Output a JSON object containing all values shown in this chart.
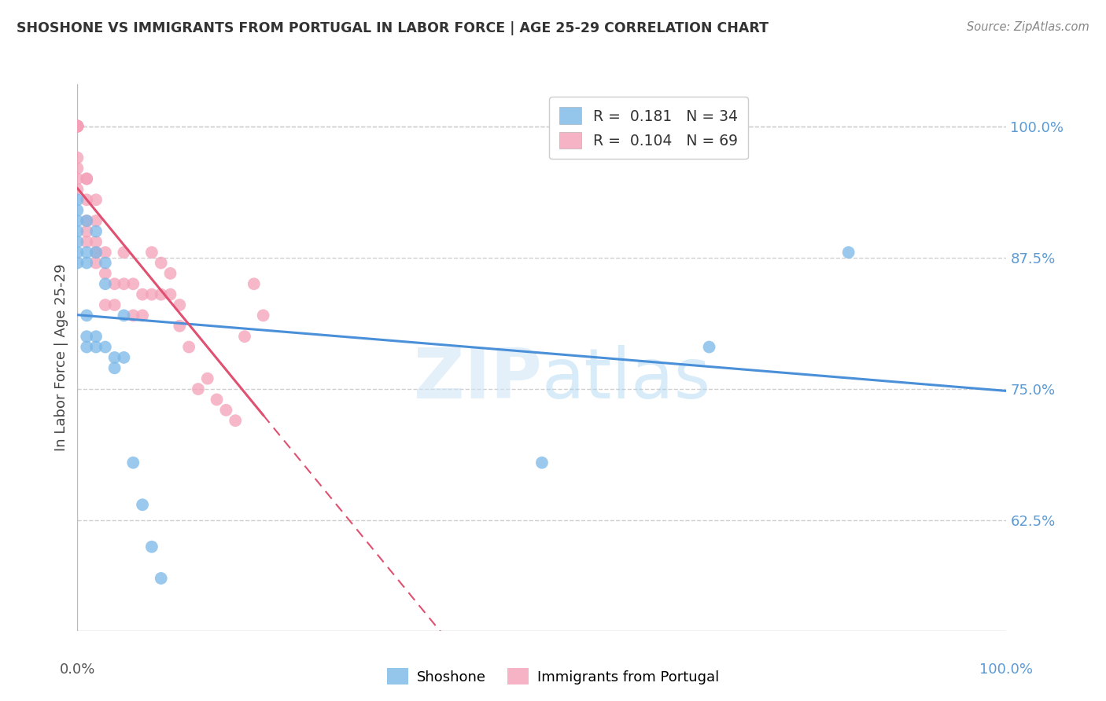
{
  "title": "SHOSHONE VS IMMIGRANTS FROM PORTUGAL IN LABOR FORCE | AGE 25-29 CORRELATION CHART",
  "source": "Source: ZipAtlas.com",
  "ylabel": "In Labor Force | Age 25-29",
  "yticks": [
    62.5,
    75.0,
    87.5,
    100.0
  ],
  "ytick_labels": [
    "62.5%",
    "75.0%",
    "87.5%",
    "100.0%"
  ],
  "xlim": [
    0.0,
    100.0
  ],
  "ylim": [
    52.0,
    104.0
  ],
  "background_color": "#ffffff",
  "grid_color": "#d0d0d0",
  "watermark_zip": "ZIP",
  "watermark_atlas": "atlas",
  "blue_color": "#7ab8e8",
  "pink_color": "#f4a0b8",
  "blue_line_color": "#4a90d9",
  "pink_line_color": "#e05070",
  "shoshone_x": [
    0.0,
    0.0,
    0.0,
    0.0,
    0.0,
    0.0,
    0.0,
    1.0,
    1.0,
    1.0,
    1.0,
    1.0,
    1.0,
    2.0,
    2.0,
    2.0,
    2.0,
    3.0,
    3.0,
    3.0,
    4.0,
    4.0,
    5.0,
    5.0,
    6.0,
    7.0,
    8.0,
    9.0,
    50.0,
    68.0,
    83.0
  ],
  "shoshone_y": [
    93.0,
    92.0,
    91.0,
    90.0,
    89.0,
    88.0,
    87.0,
    91.0,
    88.0,
    87.0,
    82.0,
    80.0,
    79.0,
    90.0,
    88.0,
    80.0,
    79.0,
    87.0,
    85.0,
    79.0,
    78.0,
    77.0,
    82.0,
    78.0,
    68.0,
    64.0,
    60.0,
    57.0,
    68.0,
    79.0,
    88.0
  ],
  "portugal_x": [
    0.0,
    0.0,
    0.0,
    0.0,
    0.0,
    0.0,
    0.0,
    0.0,
    0.0,
    0.0,
    0.0,
    0.0,
    1.0,
    1.0,
    1.0,
    1.0,
    1.0,
    1.0,
    2.0,
    2.0,
    2.0,
    2.0,
    2.0,
    3.0,
    3.0,
    3.0,
    4.0,
    4.0,
    5.0,
    5.0,
    6.0,
    6.0,
    7.0,
    7.0,
    8.0,
    8.0,
    9.0,
    9.0,
    10.0,
    10.0,
    11.0,
    11.0,
    12.0,
    13.0,
    14.0,
    15.0,
    16.0,
    17.0,
    18.0,
    19.0,
    20.0
  ],
  "portugal_y": [
    100.0,
    100.0,
    100.0,
    100.0,
    100.0,
    100.0,
    100.0,
    100.0,
    97.0,
    96.0,
    95.0,
    94.0,
    95.0,
    95.0,
    93.0,
    91.0,
    90.0,
    89.0,
    93.0,
    91.0,
    89.0,
    88.0,
    87.0,
    88.0,
    86.0,
    83.0,
    85.0,
    83.0,
    88.0,
    85.0,
    85.0,
    82.0,
    84.0,
    82.0,
    88.0,
    84.0,
    87.0,
    84.0,
    86.0,
    84.0,
    83.0,
    81.0,
    79.0,
    75.0,
    76.0,
    74.0,
    73.0,
    72.0,
    80.0,
    85.0,
    82.0
  ]
}
